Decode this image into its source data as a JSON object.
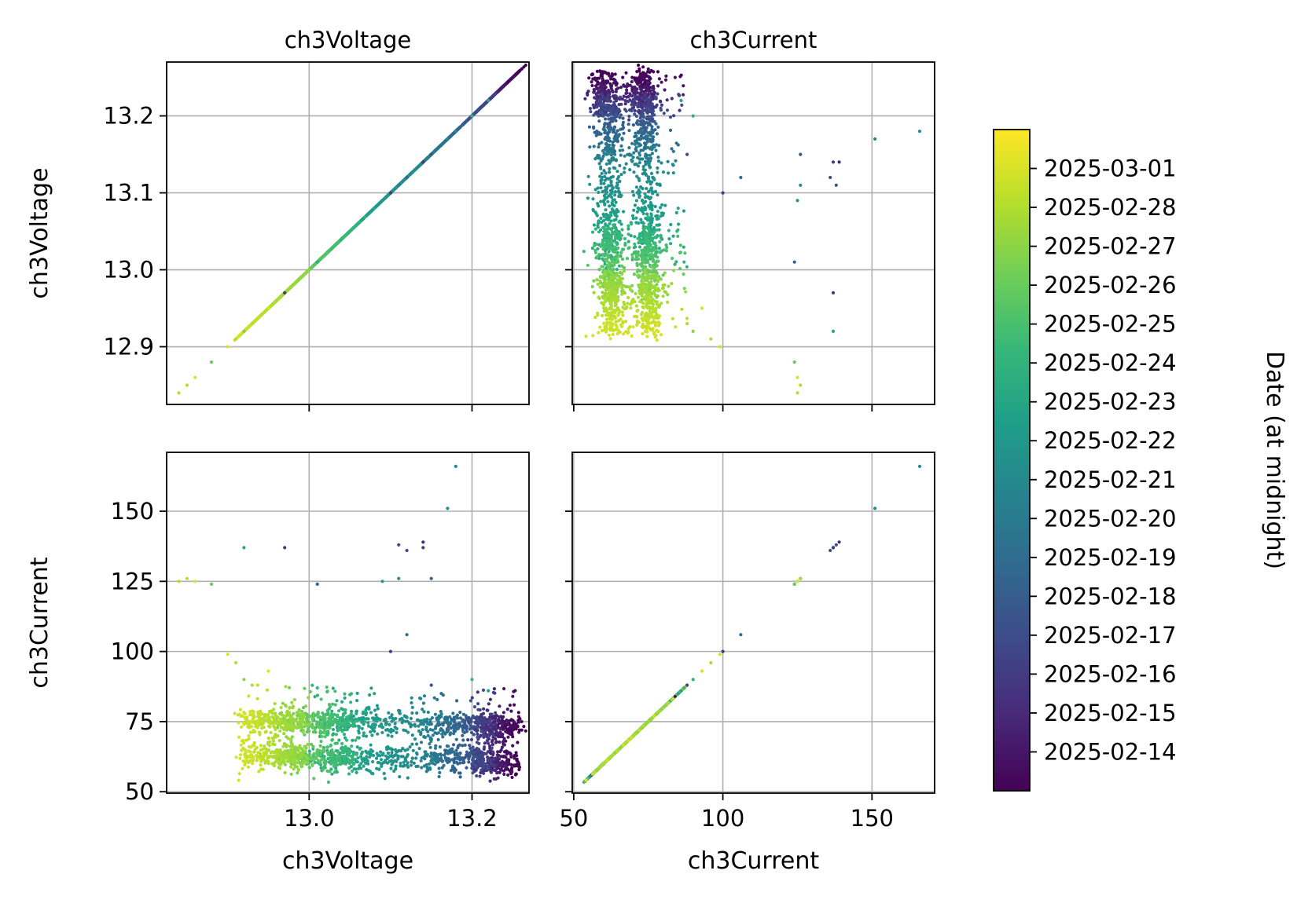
{
  "chart_data": {
    "type": "scatter",
    "layout": "pair-plot-2x2",
    "variables": [
      "ch3Voltage",
      "ch3Current"
    ],
    "panels": [
      {
        "row": 0,
        "col": 0,
        "title": "ch3Voltage",
        "x": "ch3Voltage",
        "y": "ch3Voltage",
        "xlim": [
          12.825,
          13.27
        ],
        "ylim": [
          12.825,
          13.27
        ],
        "xticks": [
          13.0,
          13.2
        ],
        "yticks": [
          12.9,
          13.0,
          13.1,
          13.2
        ],
        "xtick_labels_shown": false,
        "ytick_labels": [
          "12.9",
          "13.0",
          "13.1",
          "13.2"
        ],
        "ylabel": "ch3Voltage",
        "grid": true
      },
      {
        "row": 0,
        "col": 1,
        "title": "ch3Current",
        "x": "ch3Current",
        "y": "ch3Voltage",
        "xlim": [
          49.5,
          171
        ],
        "ylim": [
          12.825,
          13.27
        ],
        "xticks": [
          50,
          100,
          150
        ],
        "yticks": [
          12.9,
          13.0,
          13.1,
          13.2
        ],
        "xtick_labels_shown": false,
        "ytick_labels_shown": false,
        "grid": true
      },
      {
        "row": 1,
        "col": 0,
        "x": "ch3Voltage",
        "y": "ch3Current",
        "xlim": [
          12.825,
          13.27
        ],
        "ylim": [
          49.5,
          171
        ],
        "xticks": [
          13.0,
          13.2
        ],
        "yticks": [
          50,
          75,
          100,
          125,
          150
        ],
        "xtick_labels": [
          "13.0",
          "13.2"
        ],
        "ytick_labels": [
          "50",
          "75",
          "100",
          "125",
          "150"
        ],
        "xlabel": "ch3Voltage",
        "ylabel": "ch3Current",
        "grid": true
      },
      {
        "row": 1,
        "col": 1,
        "x": "ch3Current",
        "y": "ch3Current",
        "xlim": [
          49.5,
          171
        ],
        "ylim": [
          49.5,
          171
        ],
        "xticks": [
          50,
          100,
          150
        ],
        "yticks": [
          50,
          75,
          100,
          125,
          150
        ],
        "xtick_labels": [
          "50",
          "100",
          "150"
        ],
        "ytick_labels_shown": false,
        "xlabel": "ch3Current",
        "grid": true
      }
    ],
    "colorbar": {
      "label": "Date (at midnight)",
      "colormap": "viridis",
      "range": [
        "2025-02-13",
        "2025-03-02"
      ],
      "ticks": [
        "2025-02-14",
        "2025-02-15",
        "2025-02-16",
        "2025-02-17",
        "2025-02-18",
        "2025-02-19",
        "2025-02-20",
        "2025-02-21",
        "2025-02-22",
        "2025-02-23",
        "2025-02-24",
        "2025-02-25",
        "2025-02-26",
        "2025-02-27",
        "2025-02-28",
        "2025-03-01"
      ],
      "tick_labels": [
        "2025-02-14",
        "2025-02-15",
        "2025-02-16",
        "2025-02-17",
        "2025-02-18",
        "2025-02-19",
        "2025-02-20",
        "2025-02-21",
        "2025-02-22",
        "2025-02-23",
        "2025-02-24",
        "2025-02-25",
        "2025-02-26",
        "2025-02-27",
        "2025-02-28",
        "2025-03-01"
      ]
    },
    "colormap_stops": [
      "#440154",
      "#482878",
      "#3e4989",
      "#31688e",
      "#26828e",
      "#1f9e89",
      "#35b779",
      "#6ece58",
      "#b5de2b",
      "#fde725"
    ],
    "gridline_color": "#b0b0b0",
    "clusters": [
      {
        "date_range": [
          "2025-02-13",
          "2025-02-16"
        ],
        "voltage_range": [
          13.2,
          13.26
        ],
        "current_centers": [
          60,
          73
        ]
      },
      {
        "date_range": [
          "2025-02-16",
          "2025-02-21"
        ],
        "voltage_range": [
          13.13,
          13.23
        ],
        "current_centers": [
          62,
          74
        ]
      },
      {
        "date_range": [
          "2025-02-21",
          "2025-02-24"
        ],
        "voltage_range": [
          13.0,
          13.14
        ],
        "current_centers": [
          62,
          75
        ]
      },
      {
        "date_range": [
          "2025-02-24",
          "2025-02-27"
        ],
        "voltage_range": [
          12.96,
          13.06
        ],
        "current_centers": [
          62,
          75
        ]
      },
      {
        "date_range": [
          "2025-02-27",
          "2025-03-01"
        ],
        "voltage_range": [
          12.91,
          13.0
        ],
        "current_centers": [
          63,
          75
        ]
      }
    ],
    "outliers": [
      {
        "voltage": 13.18,
        "current": 166,
        "date": "2025-02-21"
      },
      {
        "voltage": 13.17,
        "current": 151,
        "date": "2025-02-21"
      },
      {
        "voltage": 13.14,
        "current": 139,
        "date": "2025-02-15"
      },
      {
        "voltage": 13.11,
        "current": 138,
        "date": "2025-02-17"
      },
      {
        "voltage": 13.14,
        "current": 137,
        "date": "2025-02-16"
      },
      {
        "voltage": 13.12,
        "current": 136,
        "date": "2025-02-17"
      },
      {
        "voltage": 12.92,
        "current": 137,
        "date": "2025-02-23"
      },
      {
        "voltage": 12.97,
        "current": 137,
        "date": "2025-02-16"
      },
      {
        "voltage": 13.15,
        "current": 126,
        "date": "2025-02-18"
      },
      {
        "voltage": 13.11,
        "current": 126,
        "date": "2025-02-21"
      },
      {
        "voltage": 13.09,
        "current": 125,
        "date": "2025-02-22"
      },
      {
        "voltage": 13.01,
        "current": 124,
        "date": "2025-02-18"
      },
      {
        "voltage": 12.84,
        "current": 125,
        "date": "2025-02-28"
      },
      {
        "voltage": 12.85,
        "current": 126,
        "date": "2025-02-28"
      },
      {
        "voltage": 12.86,
        "current": 125,
        "date": "2025-03-01"
      },
      {
        "voltage": 12.88,
        "current": 124,
        "date": "2025-02-26"
      },
      {
        "voltage": 13.12,
        "current": 106,
        "date": "2025-02-19"
      },
      {
        "voltage": 13.1,
        "current": 100,
        "date": "2025-02-16"
      },
      {
        "voltage": 12.9,
        "current": 99,
        "date": "2025-03-01"
      },
      {
        "voltage": 12.91,
        "current": 96,
        "date": "2025-02-28"
      },
      {
        "voltage": 12.95,
        "current": 93,
        "date": "2025-03-01"
      },
      {
        "voltage": 12.92,
        "current": 90,
        "date": "2025-02-27"
      },
      {
        "voltage": 12.93,
        "current": 88,
        "date": "2025-02-28"
      },
      {
        "voltage": 13.2,
        "current": 90,
        "date": "2025-02-24"
      },
      {
        "voltage": 13.22,
        "current": 86,
        "date": "2025-02-23"
      },
      {
        "voltage": 13.25,
        "current": 84,
        "date": "2025-02-14"
      },
      {
        "voltage": 13.15,
        "current": 88,
        "date": "2025-02-17"
      },
      {
        "voltage": 13.01,
        "current": 87,
        "date": "2025-02-24"
      },
      {
        "voltage": 13.08,
        "current": 85,
        "date": "2025-02-23"
      }
    ]
  }
}
